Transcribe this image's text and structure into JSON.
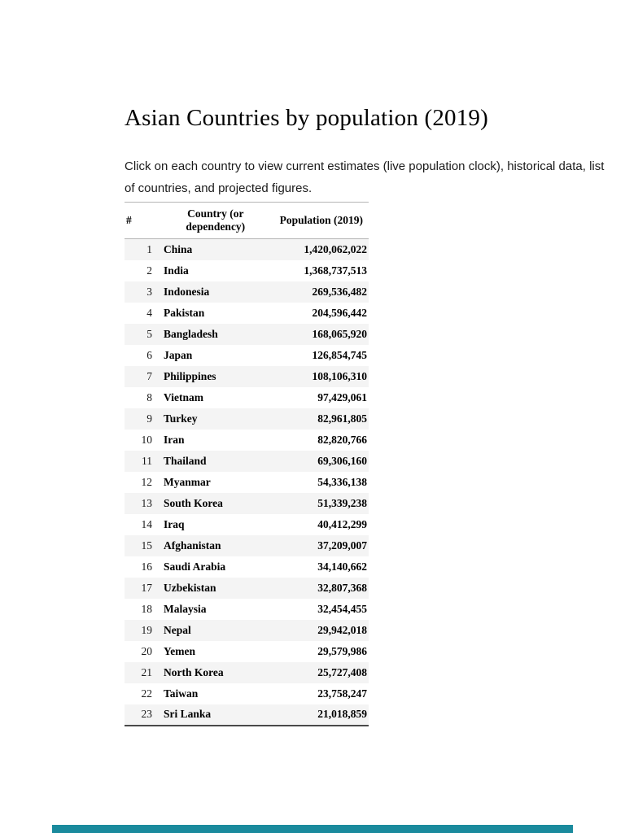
{
  "page": {
    "title": "Asian Countries by population (2019)",
    "intro": "Click on each country to view current estimates (live population clock), historical data, list of countries, and projected figures."
  },
  "table": {
    "columns": [
      "#",
      "Country (or dependency)",
      "Population (2019)"
    ],
    "rows": [
      [
        "1",
        "China",
        "1,420,062,022"
      ],
      [
        "2",
        "India",
        "1,368,737,513"
      ],
      [
        "3",
        "Indonesia",
        "269,536,482"
      ],
      [
        "4",
        "Pakistan",
        "204,596,442"
      ],
      [
        "5",
        "Bangladesh",
        "168,065,920"
      ],
      [
        "6",
        "Japan",
        "126,854,745"
      ],
      [
        "7",
        "Philippines",
        "108,106,310"
      ],
      [
        "8",
        "Vietnam",
        "97,429,061"
      ],
      [
        "9",
        "Turkey",
        "82,961,805"
      ],
      [
        "10",
        "Iran",
        "82,820,766"
      ],
      [
        "11",
        "Thailand",
        "69,306,160"
      ],
      [
        "12",
        "Myanmar",
        "54,336,138"
      ],
      [
        "13",
        "South Korea",
        "51,339,238"
      ],
      [
        "14",
        "Iraq",
        "40,412,299"
      ],
      [
        "15",
        "Afghanistan",
        "37,209,007"
      ],
      [
        "16",
        "Saudi Arabia",
        "34,140,662"
      ],
      [
        "17",
        "Uzbekistan",
        "32,807,368"
      ],
      [
        "18",
        "Malaysia",
        "32,454,455"
      ],
      [
        "19",
        "Nepal",
        "29,942,018"
      ],
      [
        "20",
        "Yemen",
        "29,579,986"
      ],
      [
        "21",
        "North Korea",
        "25,727,408"
      ],
      [
        "22",
        "Taiwan",
        "23,758,247"
      ],
      [
        "23",
        "Sri Lanka",
        "21,018,859"
      ]
    ]
  },
  "colors": {
    "next_page_strip": "#1a8a9d",
    "row_stripe": "#f4f4f4",
    "text": "#000000"
  }
}
